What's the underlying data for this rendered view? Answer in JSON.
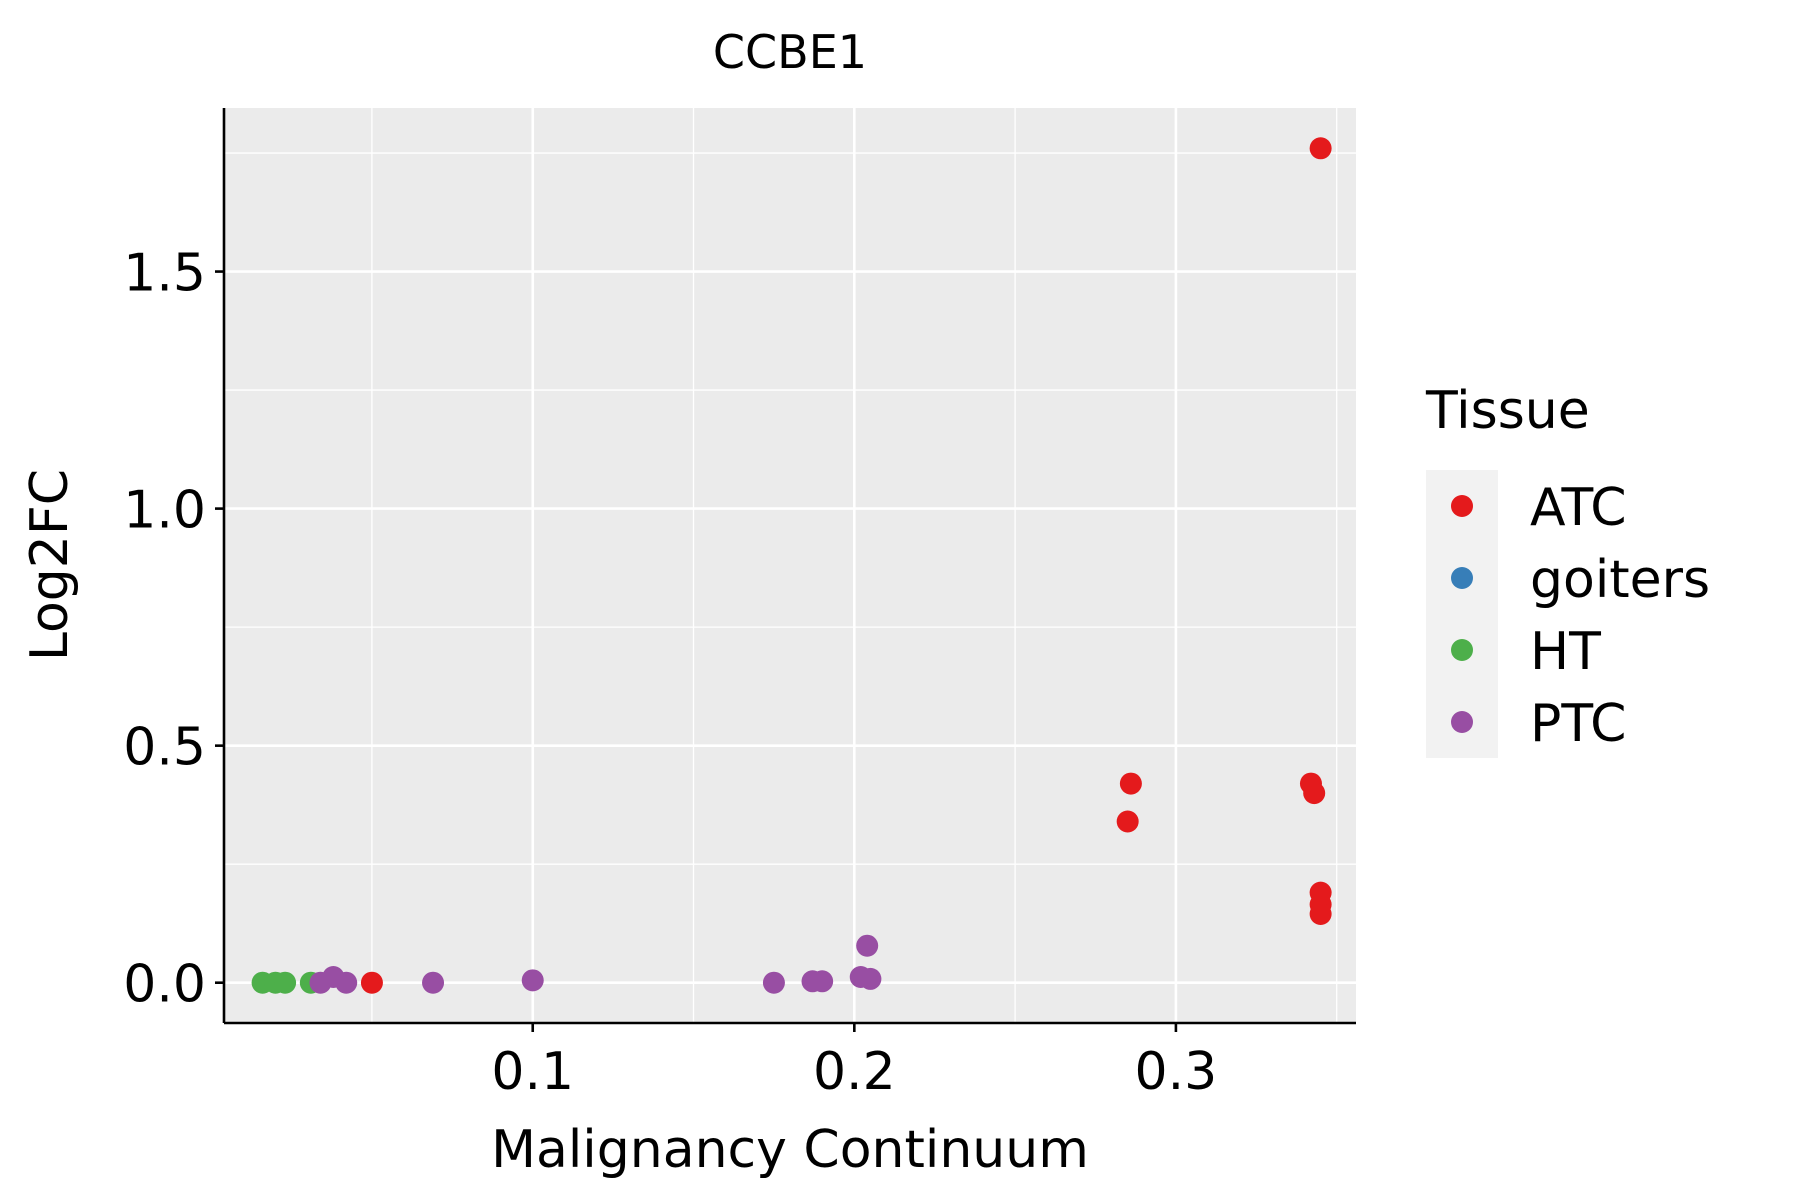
{
  "chart_data": {
    "type": "scatter",
    "title": "CCBE1",
    "xlabel": "Malignancy Continuum",
    "ylabel": "Log2FC",
    "xlim": [
      0.004,
      0.356
    ],
    "ylim": [
      -0.085,
      1.845
    ],
    "x_ticks": [
      0.1,
      0.2,
      0.3
    ],
    "x_tick_labels": [
      "0.1",
      "0.2",
      "0.3"
    ],
    "x_minor": [
      0.05,
      0.15,
      0.25,
      0.35
    ],
    "y_ticks": [
      0.0,
      0.5,
      1.0,
      1.5
    ],
    "y_tick_labels": [
      "0.0",
      "0.5",
      "1.0",
      "1.5"
    ],
    "y_minor": [
      0.25,
      0.75,
      1.25,
      1.75
    ],
    "grid": true,
    "legend": {
      "title": "Tissue",
      "position": "right",
      "entries": [
        {
          "label": "ATC",
          "color": "#e41a1c"
        },
        {
          "label": "goiters",
          "color": "#377eb8"
        },
        {
          "label": "HT",
          "color": "#4daf4a"
        },
        {
          "label": "PTC",
          "color": "#984ea3"
        }
      ]
    },
    "series": [
      {
        "name": "HT",
        "color": "#4daf4a",
        "points": [
          {
            "x": 0.016,
            "y": 0.0
          },
          {
            "x": 0.02,
            "y": 0.0
          },
          {
            "x": 0.023,
            "y": 0.0
          },
          {
            "x": 0.031,
            "y": 0.0
          }
        ]
      },
      {
        "name": "PTC",
        "color": "#984ea3",
        "points": [
          {
            "x": 0.034,
            "y": 0.0
          },
          {
            "x": 0.038,
            "y": 0.012
          },
          {
            "x": 0.042,
            "y": 0.0
          },
          {
            "x": 0.069,
            "y": 0.0
          },
          {
            "x": 0.1,
            "y": 0.005
          },
          {
            "x": 0.175,
            "y": 0.0
          },
          {
            "x": 0.187,
            "y": 0.003
          },
          {
            "x": 0.19,
            "y": 0.003
          },
          {
            "x": 0.202,
            "y": 0.012
          },
          {
            "x": 0.205,
            "y": 0.008
          },
          {
            "x": 0.204,
            "y": 0.078
          }
        ]
      },
      {
        "name": "ATC",
        "color": "#e41a1c",
        "points": [
          {
            "x": 0.05,
            "y": 0.0
          },
          {
            "x": 0.286,
            "y": 0.42
          },
          {
            "x": 0.285,
            "y": 0.34
          },
          {
            "x": 0.342,
            "y": 0.42
          },
          {
            "x": 0.343,
            "y": 0.4
          },
          {
            "x": 0.345,
            "y": 0.19
          },
          {
            "x": 0.345,
            "y": 0.165
          },
          {
            "x": 0.345,
            "y": 0.145
          },
          {
            "x": 0.345,
            "y": 1.76
          }
        ]
      },
      {
        "name": "goiters",
        "color": "#377eb8",
        "points": []
      }
    ]
  }
}
